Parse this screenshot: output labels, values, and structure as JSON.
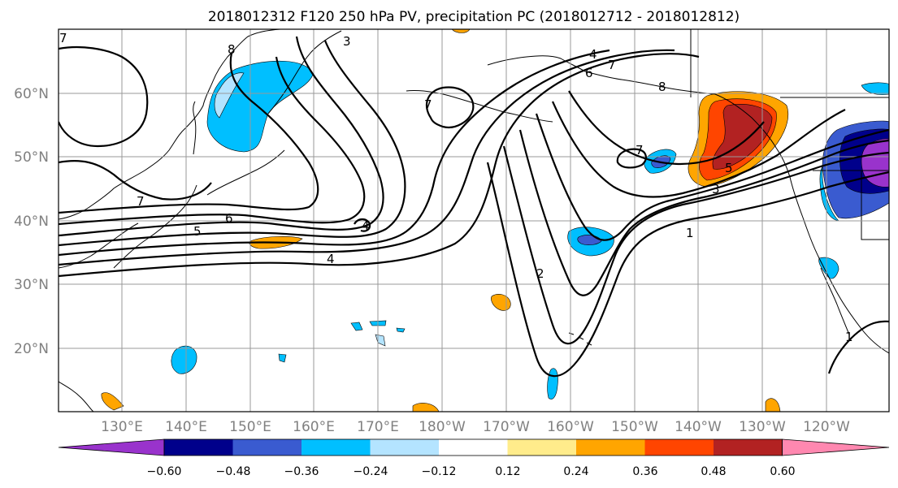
{
  "title": "2018012312 F120 250 hPa PV, precipitation PC (2018012712 - 2018012812)",
  "lat_labels": [
    "60°N",
    "50°N",
    "40°N",
    "30°N",
    "20°N"
  ],
  "lon_labels": [
    "130°E",
    "140°E",
    "150°E",
    "160°E",
    "170°E",
    "180°W",
    "170°W",
    "160°W",
    "150°W",
    "140°W",
    "130°W",
    "120°W"
  ],
  "colorbar": {
    "ticks": [
      "−0.60",
      "−0.48",
      "−0.36",
      "−0.24",
      "−0.12",
      "0.12",
      "0.24",
      "0.36",
      "0.48",
      "0.60"
    ],
    "colors": [
      "#9933cc",
      "#00008b",
      "#3a5bd0",
      "#00bfff",
      "#b4e4ff",
      "#ffffff",
      "#ffec8b",
      "#ffa500",
      "#ff4500",
      "#b22222",
      "#ff88b0"
    ]
  },
  "contour_labels": [
    "8",
    "3",
    "4",
    "6",
    "7",
    "8",
    "7",
    "7",
    "7",
    "6",
    "5",
    "4",
    "4",
    "2",
    "1",
    "1",
    "5",
    "3",
    "7"
  ],
  "colors": {
    "land_outline": "#000000",
    "grid": "#999999",
    "contour": "#000000"
  }
}
